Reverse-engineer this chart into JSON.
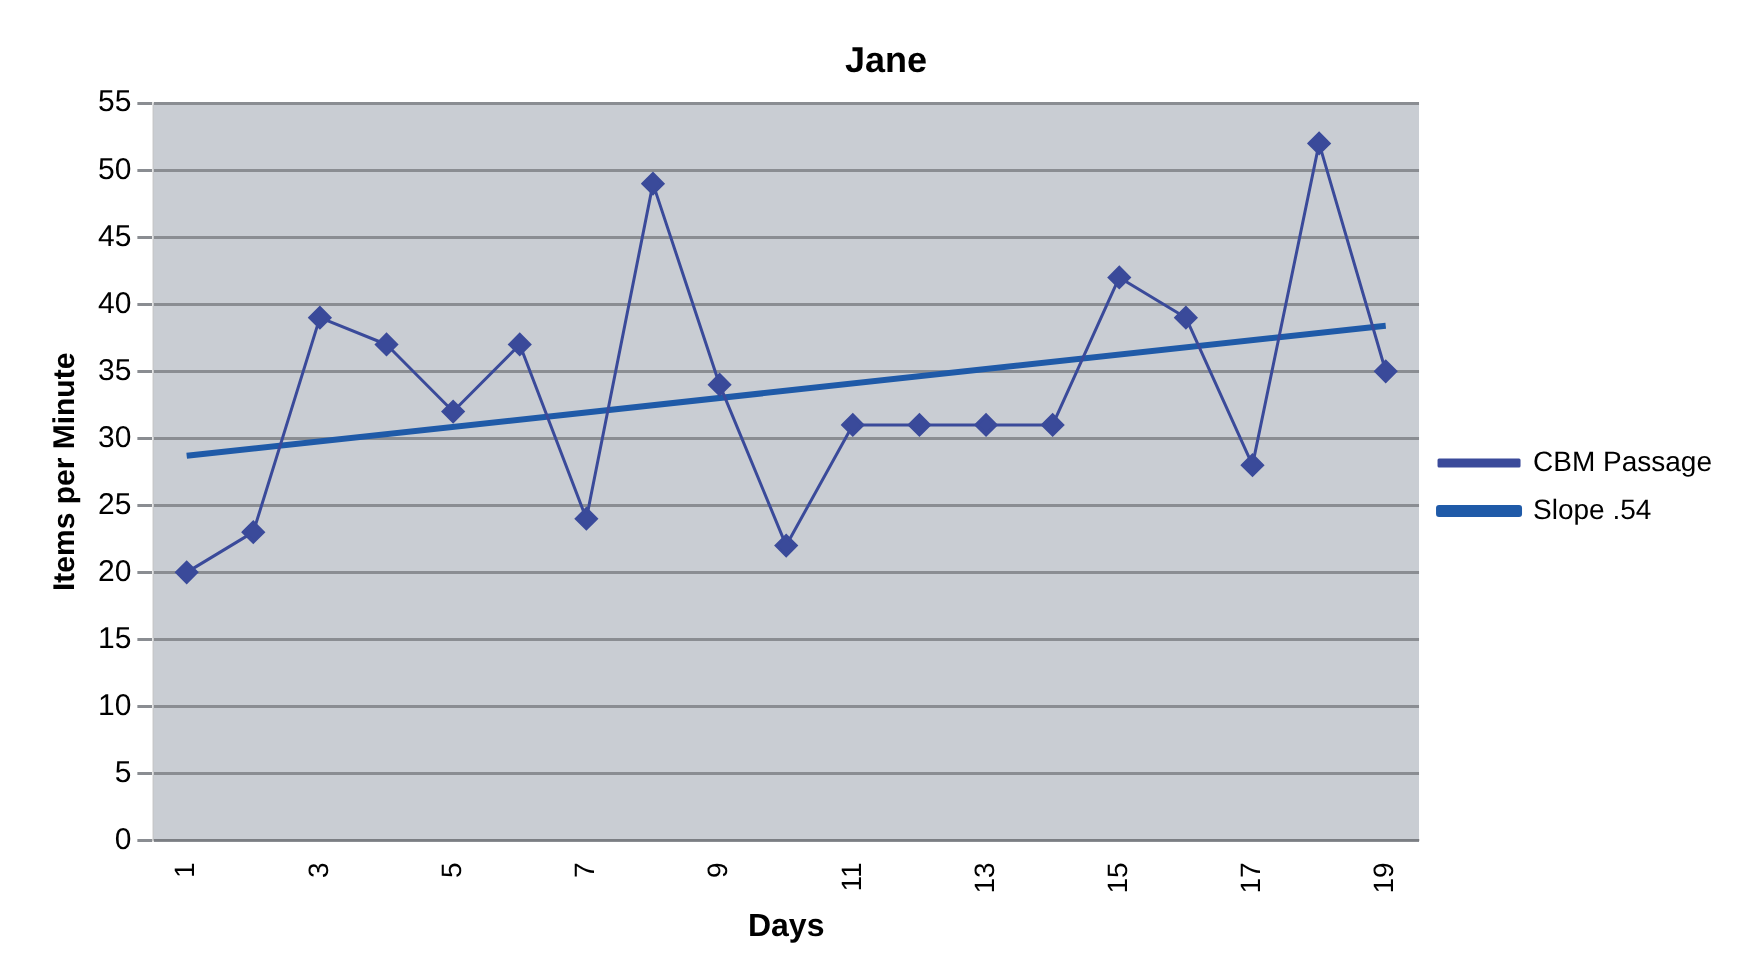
{
  "chart_data": {
    "type": "line",
    "title": "Jane",
    "xlabel": "Days",
    "ylabel": "Items per Minute",
    "xlim": [
      0.5,
      19.5
    ],
    "xticks": [
      1,
      3,
      5,
      7,
      9,
      11,
      13,
      15,
      17,
      19
    ],
    "ylim": [
      0,
      55
    ],
    "yticks": [
      0,
      5,
      10,
      15,
      20,
      25,
      30,
      35,
      40,
      45,
      50,
      55
    ],
    "grid": "y",
    "legend": "right",
    "series": [
      {
        "name": "CBM Passage",
        "color": "#3a4a9a",
        "marker": "diamond",
        "x": [
          1,
          2,
          3,
          4,
          5,
          6,
          7,
          8,
          9,
          10,
          11,
          12,
          13,
          14,
          15,
          16,
          17,
          18,
          19
        ],
        "values": [
          20,
          23,
          39,
          37,
          32,
          37,
          24,
          49,
          34,
          22,
          31,
          31,
          31,
          31,
          42,
          39,
          28,
          52,
          35
        ]
      },
      {
        "name": "Slope .54",
        "color": "#1f5aa8",
        "marker": "none",
        "x": [
          1,
          19
        ],
        "values": [
          28.7,
          38.4
        ]
      }
    ]
  }
}
